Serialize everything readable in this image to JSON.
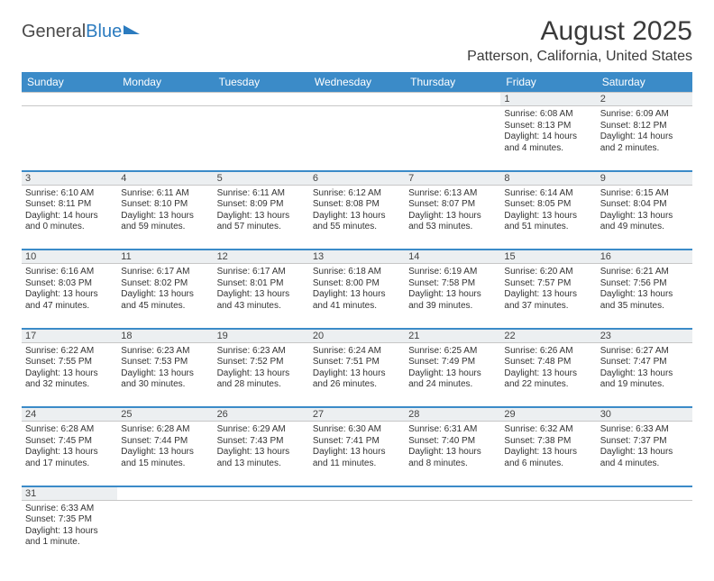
{
  "logo": {
    "text1": "General",
    "text2": "Blue"
  },
  "title": "August 2025",
  "location": "Patterson, California, United States",
  "colors": {
    "header_bg": "#3b8bc8",
    "header_fg": "#ffffff",
    "daynum_bg": "#eceff1",
    "row_border": "#3b8bc8"
  },
  "weekdays": [
    "Sunday",
    "Monday",
    "Tuesday",
    "Wednesday",
    "Thursday",
    "Friday",
    "Saturday"
  ],
  "weeks": [
    [
      null,
      null,
      null,
      null,
      null,
      {
        "n": "1",
        "sr": "Sunrise: 6:08 AM",
        "ss": "Sunset: 8:13 PM",
        "dl": "Daylight: 14 hours and 4 minutes."
      },
      {
        "n": "2",
        "sr": "Sunrise: 6:09 AM",
        "ss": "Sunset: 8:12 PM",
        "dl": "Daylight: 14 hours and 2 minutes."
      }
    ],
    [
      {
        "n": "3",
        "sr": "Sunrise: 6:10 AM",
        "ss": "Sunset: 8:11 PM",
        "dl": "Daylight: 14 hours and 0 minutes."
      },
      {
        "n": "4",
        "sr": "Sunrise: 6:11 AM",
        "ss": "Sunset: 8:10 PM",
        "dl": "Daylight: 13 hours and 59 minutes."
      },
      {
        "n": "5",
        "sr": "Sunrise: 6:11 AM",
        "ss": "Sunset: 8:09 PM",
        "dl": "Daylight: 13 hours and 57 minutes."
      },
      {
        "n": "6",
        "sr": "Sunrise: 6:12 AM",
        "ss": "Sunset: 8:08 PM",
        "dl": "Daylight: 13 hours and 55 minutes."
      },
      {
        "n": "7",
        "sr": "Sunrise: 6:13 AM",
        "ss": "Sunset: 8:07 PM",
        "dl": "Daylight: 13 hours and 53 minutes."
      },
      {
        "n": "8",
        "sr": "Sunrise: 6:14 AM",
        "ss": "Sunset: 8:05 PM",
        "dl": "Daylight: 13 hours and 51 minutes."
      },
      {
        "n": "9",
        "sr": "Sunrise: 6:15 AM",
        "ss": "Sunset: 8:04 PM",
        "dl": "Daylight: 13 hours and 49 minutes."
      }
    ],
    [
      {
        "n": "10",
        "sr": "Sunrise: 6:16 AM",
        "ss": "Sunset: 8:03 PM",
        "dl": "Daylight: 13 hours and 47 minutes."
      },
      {
        "n": "11",
        "sr": "Sunrise: 6:17 AM",
        "ss": "Sunset: 8:02 PM",
        "dl": "Daylight: 13 hours and 45 minutes."
      },
      {
        "n": "12",
        "sr": "Sunrise: 6:17 AM",
        "ss": "Sunset: 8:01 PM",
        "dl": "Daylight: 13 hours and 43 minutes."
      },
      {
        "n": "13",
        "sr": "Sunrise: 6:18 AM",
        "ss": "Sunset: 8:00 PM",
        "dl": "Daylight: 13 hours and 41 minutes."
      },
      {
        "n": "14",
        "sr": "Sunrise: 6:19 AM",
        "ss": "Sunset: 7:58 PM",
        "dl": "Daylight: 13 hours and 39 minutes."
      },
      {
        "n": "15",
        "sr": "Sunrise: 6:20 AM",
        "ss": "Sunset: 7:57 PM",
        "dl": "Daylight: 13 hours and 37 minutes."
      },
      {
        "n": "16",
        "sr": "Sunrise: 6:21 AM",
        "ss": "Sunset: 7:56 PM",
        "dl": "Daylight: 13 hours and 35 minutes."
      }
    ],
    [
      {
        "n": "17",
        "sr": "Sunrise: 6:22 AM",
        "ss": "Sunset: 7:55 PM",
        "dl": "Daylight: 13 hours and 32 minutes."
      },
      {
        "n": "18",
        "sr": "Sunrise: 6:23 AM",
        "ss": "Sunset: 7:53 PM",
        "dl": "Daylight: 13 hours and 30 minutes."
      },
      {
        "n": "19",
        "sr": "Sunrise: 6:23 AM",
        "ss": "Sunset: 7:52 PM",
        "dl": "Daylight: 13 hours and 28 minutes."
      },
      {
        "n": "20",
        "sr": "Sunrise: 6:24 AM",
        "ss": "Sunset: 7:51 PM",
        "dl": "Daylight: 13 hours and 26 minutes."
      },
      {
        "n": "21",
        "sr": "Sunrise: 6:25 AM",
        "ss": "Sunset: 7:49 PM",
        "dl": "Daylight: 13 hours and 24 minutes."
      },
      {
        "n": "22",
        "sr": "Sunrise: 6:26 AM",
        "ss": "Sunset: 7:48 PM",
        "dl": "Daylight: 13 hours and 22 minutes."
      },
      {
        "n": "23",
        "sr": "Sunrise: 6:27 AM",
        "ss": "Sunset: 7:47 PM",
        "dl": "Daylight: 13 hours and 19 minutes."
      }
    ],
    [
      {
        "n": "24",
        "sr": "Sunrise: 6:28 AM",
        "ss": "Sunset: 7:45 PM",
        "dl": "Daylight: 13 hours and 17 minutes."
      },
      {
        "n": "25",
        "sr": "Sunrise: 6:28 AM",
        "ss": "Sunset: 7:44 PM",
        "dl": "Daylight: 13 hours and 15 minutes."
      },
      {
        "n": "26",
        "sr": "Sunrise: 6:29 AM",
        "ss": "Sunset: 7:43 PM",
        "dl": "Daylight: 13 hours and 13 minutes."
      },
      {
        "n": "27",
        "sr": "Sunrise: 6:30 AM",
        "ss": "Sunset: 7:41 PM",
        "dl": "Daylight: 13 hours and 11 minutes."
      },
      {
        "n": "28",
        "sr": "Sunrise: 6:31 AM",
        "ss": "Sunset: 7:40 PM",
        "dl": "Daylight: 13 hours and 8 minutes."
      },
      {
        "n": "29",
        "sr": "Sunrise: 6:32 AM",
        "ss": "Sunset: 7:38 PM",
        "dl": "Daylight: 13 hours and 6 minutes."
      },
      {
        "n": "30",
        "sr": "Sunrise: 6:33 AM",
        "ss": "Sunset: 7:37 PM",
        "dl": "Daylight: 13 hours and 4 minutes."
      }
    ],
    [
      {
        "n": "31",
        "sr": "Sunrise: 6:33 AM",
        "ss": "Sunset: 7:35 PM",
        "dl": "Daylight: 13 hours and 1 minute."
      },
      null,
      null,
      null,
      null,
      null,
      null
    ]
  ]
}
